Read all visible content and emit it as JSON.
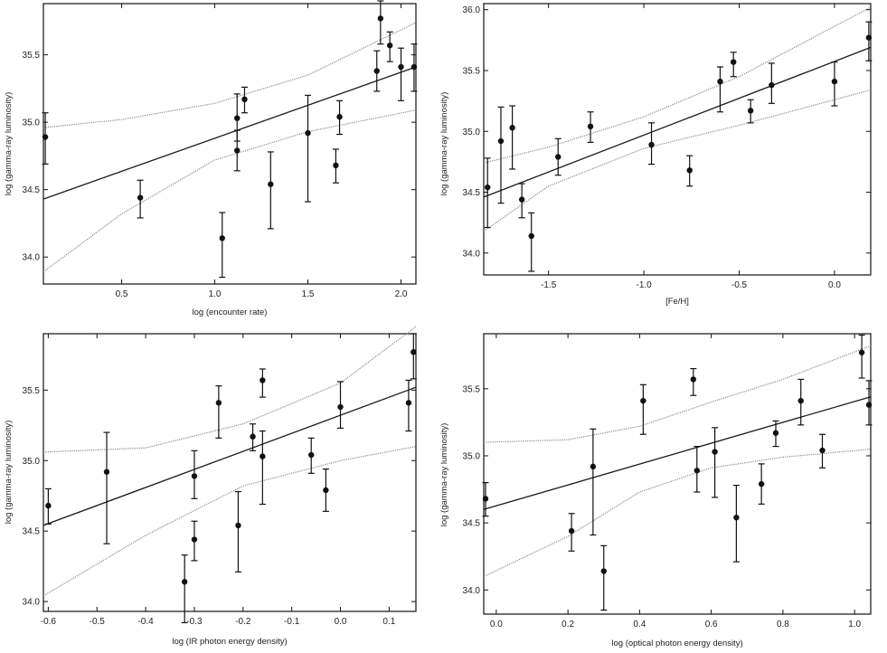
{
  "chart_data": [
    {
      "type": "scatter",
      "panel": "top-left",
      "xlabel": "log (encounter rate)",
      "ylabel": "log (gamma-ray luminosity)",
      "xlim": [
        0.08,
        2.08
      ],
      "ylim": [
        33.8,
        35.88
      ],
      "xticks": [
        0.5,
        1.0,
        1.5,
        2.0
      ],
      "xtick_labels": [
        "0.5",
        "1.0",
        "1.5",
        "2.0"
      ],
      "yticks": [
        34.0,
        34.5,
        35.0,
        35.5
      ],
      "ytick_labels": [
        "34.0",
        "34.5",
        "35.0",
        "35.5"
      ],
      "points": [
        {
          "x": 0.09,
          "y": 34.89,
          "lo": 34.69,
          "hi": 35.07
        },
        {
          "x": 0.6,
          "y": 34.44,
          "lo": 34.29,
          "hi": 34.57
        },
        {
          "x": 1.04,
          "y": 34.14,
          "lo": 33.85,
          "hi": 34.33
        },
        {
          "x": 1.12,
          "y": 35.03,
          "lo": 34.86,
          "hi": 35.21
        },
        {
          "x": 1.12,
          "y": 34.79,
          "lo": 34.64,
          "hi": 34.94
        },
        {
          "x": 1.16,
          "y": 35.17,
          "lo": 35.07,
          "hi": 35.26
        },
        {
          "x": 1.3,
          "y": 34.54,
          "lo": 34.21,
          "hi": 34.78
        },
        {
          "x": 1.5,
          "y": 34.92,
          "lo": 34.41,
          "hi": 35.2
        },
        {
          "x": 1.65,
          "y": 34.68,
          "lo": 34.55,
          "hi": 34.8
        },
        {
          "x": 1.67,
          "y": 35.04,
          "lo": 34.91,
          "hi": 35.16
        },
        {
          "x": 1.87,
          "y": 35.38,
          "lo": 35.23,
          "hi": 35.53
        },
        {
          "x": 1.89,
          "y": 35.77,
          "lo": 35.58,
          "hi": 35.9
        },
        {
          "x": 1.94,
          "y": 35.57,
          "lo": 35.45,
          "hi": 35.67
        },
        {
          "x": 2.0,
          "y": 35.41,
          "lo": 35.16,
          "hi": 35.55
        },
        {
          "x": 2.07,
          "y": 35.41,
          "lo": 35.23,
          "hi": 35.58
        }
      ],
      "fit": [
        [
          0.08,
          34.43
        ],
        [
          2.08,
          35.41
        ]
      ],
      "band_upper": [
        [
          0.08,
          34.96
        ],
        [
          0.5,
          35.02
        ],
        [
          1.0,
          35.14
        ],
        [
          1.5,
          35.35
        ],
        [
          2.08,
          35.74
        ]
      ],
      "band_lower": [
        [
          0.08,
          33.89
        ],
        [
          0.5,
          34.32
        ],
        [
          1.0,
          34.72
        ],
        [
          1.5,
          34.93
        ],
        [
          2.08,
          35.09
        ]
      ]
    },
    {
      "type": "scatter",
      "panel": "top-right",
      "xlabel": "[Fe/H]",
      "ylabel": "log (gamma-ray luminosity)",
      "xlim": [
        -1.84,
        0.19
      ],
      "ylim": [
        33.82,
        36.05
      ],
      "xticks": [
        -1.5,
        -1.0,
        -0.5,
        0.0
      ],
      "xtick_labels": [
        "-1.5",
        "-1.0",
        "-0.5",
        "0.0"
      ],
      "yticks": [
        34.0,
        34.5,
        35.0,
        35.5,
        36.0
      ],
      "ytick_labels": [
        "34.0",
        "34.5",
        "35.0",
        "35.5",
        "36.0"
      ],
      "points": [
        {
          "x": -1.82,
          "y": 34.54,
          "lo": 34.21,
          "hi": 34.78
        },
        {
          "x": -1.75,
          "y": 34.92,
          "lo": 34.41,
          "hi": 35.2
        },
        {
          "x": -1.69,
          "y": 35.03,
          "lo": 34.69,
          "hi": 35.21
        },
        {
          "x": -1.64,
          "y": 34.44,
          "lo": 34.29,
          "hi": 34.57
        },
        {
          "x": -1.59,
          "y": 34.14,
          "lo": 33.85,
          "hi": 34.33
        },
        {
          "x": -1.45,
          "y": 34.79,
          "lo": 34.64,
          "hi": 34.94
        },
        {
          "x": -1.28,
          "y": 35.04,
          "lo": 34.91,
          "hi": 35.16
        },
        {
          "x": -0.96,
          "y": 34.89,
          "lo": 34.73,
          "hi": 35.07
        },
        {
          "x": -0.76,
          "y": 34.68,
          "lo": 34.55,
          "hi": 34.8
        },
        {
          "x": -0.6,
          "y": 35.41,
          "lo": 35.16,
          "hi": 35.53
        },
        {
          "x": -0.53,
          "y": 35.57,
          "lo": 35.45,
          "hi": 35.65
        },
        {
          "x": -0.44,
          "y": 35.17,
          "lo": 35.07,
          "hi": 35.26
        },
        {
          "x": -0.33,
          "y": 35.38,
          "lo": 35.23,
          "hi": 35.56
        },
        {
          "x": 0.0,
          "y": 35.41,
          "lo": 35.21,
          "hi": 35.57
        },
        {
          "x": 0.18,
          "y": 35.77,
          "lo": 35.58,
          "hi": 35.9
        }
      ],
      "fit": [
        [
          -1.84,
          34.46
        ],
        [
          0.19,
          35.69
        ]
      ],
      "band_upper": [
        [
          -1.84,
          34.74
        ],
        [
          -1.5,
          34.87
        ],
        [
          -1.0,
          35.12
        ],
        [
          -0.5,
          35.45
        ],
        [
          0.19,
          36.02
        ]
      ],
      "band_lower": [
        [
          -1.84,
          34.18
        ],
        [
          -1.5,
          34.55
        ],
        [
          -1.0,
          34.86
        ],
        [
          -0.5,
          35.05
        ],
        [
          0.19,
          35.34
        ]
      ]
    },
    {
      "type": "scatter",
      "panel": "bottom-left",
      "xlabel": "log (IR photon energy density)",
      "ylabel": "log (gamma-ray luminosity)",
      "xlim": [
        -0.61,
        0.155
      ],
      "ylim": [
        33.93,
        35.9
      ],
      "xticks": [
        -0.6,
        -0.5,
        -0.4,
        -0.3,
        -0.2,
        -0.1,
        0.0,
        0.1
      ],
      "xtick_labels": [
        "-0.6",
        "-0.5",
        "-0.4",
        "-0.3",
        "-0.2",
        "-0.1",
        "0.0",
        "0.1"
      ],
      "yticks": [
        34.0,
        34.5,
        35.0,
        35.5
      ],
      "ytick_labels": [
        "34.0",
        "34.5",
        "35.0",
        "35.5"
      ],
      "points": [
        {
          "x": -0.6,
          "y": 34.68,
          "lo": 34.55,
          "hi": 34.8
        },
        {
          "x": -0.48,
          "y": 34.92,
          "lo": 34.41,
          "hi": 35.2
        },
        {
          "x": -0.32,
          "y": 34.14,
          "lo": 33.85,
          "hi": 34.33
        },
        {
          "x": -0.3,
          "y": 34.89,
          "lo": 34.73,
          "hi": 35.07
        },
        {
          "x": -0.3,
          "y": 34.44,
          "lo": 34.29,
          "hi": 34.57
        },
        {
          "x": -0.25,
          "y": 35.41,
          "lo": 35.16,
          "hi": 35.53
        },
        {
          "x": -0.21,
          "y": 34.54,
          "lo": 34.21,
          "hi": 34.78
        },
        {
          "x": -0.18,
          "y": 35.17,
          "lo": 35.07,
          "hi": 35.26
        },
        {
          "x": -0.16,
          "y": 35.57,
          "lo": 35.45,
          "hi": 35.65
        },
        {
          "x": -0.16,
          "y": 35.03,
          "lo": 34.69,
          "hi": 35.21
        },
        {
          "x": -0.06,
          "y": 35.04,
          "lo": 34.91,
          "hi": 35.16
        },
        {
          "x": -0.03,
          "y": 34.79,
          "lo": 34.64,
          "hi": 34.94
        },
        {
          "x": 0.0,
          "y": 35.38,
          "lo": 35.23,
          "hi": 35.56
        },
        {
          "x": 0.14,
          "y": 35.41,
          "lo": 35.21,
          "hi": 35.57
        },
        {
          "x": 0.15,
          "y": 35.77,
          "lo": 35.58,
          "hi": 35.9
        }
      ],
      "fit": [
        [
          -0.61,
          34.54
        ],
        [
          0.155,
          35.52
        ]
      ],
      "band_upper": [
        [
          -0.61,
          35.06
        ],
        [
          -0.4,
          35.09
        ],
        [
          -0.2,
          35.26
        ],
        [
          0.0,
          35.55
        ],
        [
          0.155,
          35.95
        ]
      ],
      "band_lower": [
        [
          -0.61,
          34.04
        ],
        [
          -0.4,
          34.47
        ],
        [
          -0.2,
          34.82
        ],
        [
          0.0,
          35.0
        ],
        [
          0.155,
          35.1
        ]
      ]
    },
    {
      "type": "scatter",
      "panel": "bottom-right",
      "xlabel": "log (optical photon energy density)",
      "ylabel": "log (gamma-ray luminosity)",
      "xlim": [
        -0.035,
        1.045
      ],
      "ylim": [
        33.82,
        35.91
      ],
      "xticks": [
        0.0,
        0.2,
        0.4,
        0.6,
        0.8,
        1.0
      ],
      "xtick_labels": [
        "0.0",
        "0.2",
        "0.4",
        "0.6",
        "0.8",
        "1.0"
      ],
      "yticks": [
        34.0,
        34.5,
        35.0,
        35.5
      ],
      "ytick_labels": [
        "34.0",
        "34.5",
        "35.0",
        "35.5"
      ],
      "points": [
        {
          "x": -0.03,
          "y": 34.68,
          "lo": 34.55,
          "hi": 34.8
        },
        {
          "x": 0.21,
          "y": 34.44,
          "lo": 34.29,
          "hi": 34.57
        },
        {
          "x": 0.27,
          "y": 34.92,
          "lo": 34.41,
          "hi": 35.2
        },
        {
          "x": 0.3,
          "y": 34.14,
          "lo": 33.85,
          "hi": 34.33
        },
        {
          "x": 0.41,
          "y": 35.41,
          "lo": 35.16,
          "hi": 35.53
        },
        {
          "x": 0.55,
          "y": 35.57,
          "lo": 35.45,
          "hi": 35.65
        },
        {
          "x": 0.56,
          "y": 34.89,
          "lo": 34.73,
          "hi": 35.07
        },
        {
          "x": 0.61,
          "y": 35.03,
          "lo": 34.69,
          "hi": 35.21
        },
        {
          "x": 0.67,
          "y": 34.54,
          "lo": 34.21,
          "hi": 34.78
        },
        {
          "x": 0.74,
          "y": 34.79,
          "lo": 34.64,
          "hi": 34.94
        },
        {
          "x": 0.78,
          "y": 35.17,
          "lo": 35.07,
          "hi": 35.26
        },
        {
          "x": 0.85,
          "y": 35.41,
          "lo": 35.23,
          "hi": 35.57
        },
        {
          "x": 0.91,
          "y": 35.04,
          "lo": 34.91,
          "hi": 35.16
        },
        {
          "x": 1.02,
          "y": 35.77,
          "lo": 35.58,
          "hi": 35.9
        },
        {
          "x": 1.04,
          "y": 35.38,
          "lo": 35.23,
          "hi": 35.56
        }
      ],
      "fit": [
        [
          -0.035,
          34.6
        ],
        [
          1.045,
          35.44
        ]
      ],
      "band_upper": [
        [
          -0.035,
          35.1
        ],
        [
          0.2,
          35.12
        ],
        [
          0.4,
          35.22
        ],
        [
          0.6,
          35.4
        ],
        [
          0.8,
          35.57
        ],
        [
          1.045,
          35.82
        ]
      ],
      "band_lower": [
        [
          -0.035,
          34.1
        ],
        [
          0.2,
          34.4
        ],
        [
          0.4,
          34.73
        ],
        [
          0.6,
          34.91
        ],
        [
          0.8,
          34.99
        ],
        [
          1.045,
          35.05
        ]
      ]
    }
  ]
}
